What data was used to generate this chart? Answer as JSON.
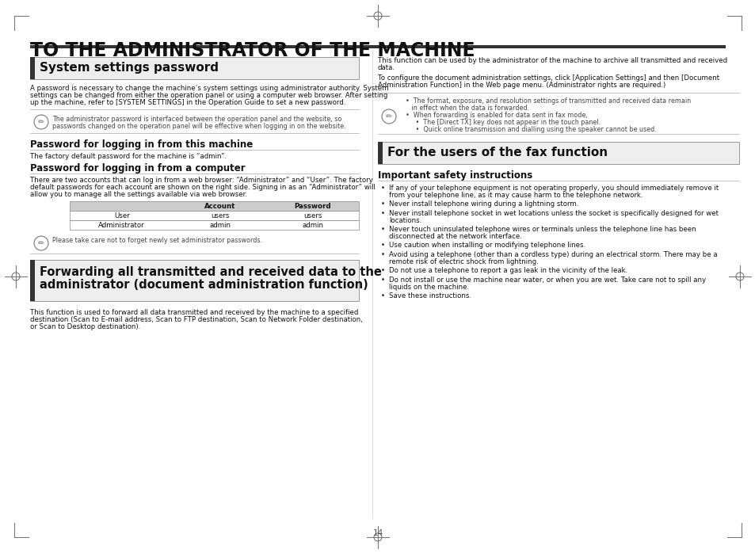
{
  "page_bg": "#ffffff",
  "page_title": "TO THE ADMINISTRATOR OF THE MACHINE",
  "section1_title": "System settings password",
  "section1_body1": "A password is necessary to change the machine’s system settings using administrator authority. System",
  "section1_body2": "settings can be changed from either the operation panel or using a computer web browser. After setting",
  "section1_body3": "up the machine, refer to [SYSTEM SETTINGS] in the Operation Guide to set a new password.",
  "note1_line1": "The administrator password is interfaced between the operation panel and the website, so",
  "note1_line2": "passwords changed on the operation panel will be effective when logging in on the website.",
  "subsec1_title": "Password for logging in from this machine",
  "subsec1_body": "The factory default password for the machine is “admin”.",
  "subsec2_title": "Password for logging in from a computer",
  "subsec2_body1": "There are two accounts that can log in from a web browser: “Administrator” and “User”. The factory",
  "subsec2_body2": "default passwords for each account are shown on the right side. Signing in as an “Administrator” will",
  "subsec2_body3": "allow you to manage all the settings available via web browser.",
  "table_headers": [
    "",
    "Account",
    "Password"
  ],
  "table_rows": [
    [
      "User",
      "users",
      "users"
    ],
    [
      "Administrator",
      "admin",
      "admin"
    ]
  ],
  "note2_text": "Please take care not to forget newly set administrator passwords.",
  "forward_box_line1": "Forwarding all transmitted and received data to the",
  "forward_box_line2": "administrator (document administration function)",
  "forward_body1": "This function is used to forward all data transmitted and received by the machine to a specified",
  "forward_body2": "destination (Scan to E-mail address, Scan to FTP destination, Scan to Network Folder destination,",
  "forward_body3": "or Scan to Desktop destination).",
  "right_body1a": "This function can be used by the administrator of the machine to archive all transmitted and received",
  "right_body1b": "data.",
  "right_body2a": "To configure the document administration settings, click [Application Settings] and then [Document",
  "right_body2b": "Administration Function] in the Web page menu. (Administrator rights are required.)",
  "rnote1": "  •  The format, exposure, and resolution settings of transmitted and received data remain",
  "rnote2": "     in effect when the data is forwarded.",
  "rnote3": "  •  When forwarding is enabled for data sent in fax mode,",
  "rnote4": "       •  The [Direct TX] key does not appear in the touch panel.",
  "rnote5": "       •  Quick online transmission and dialling using the speaker cannot be used.",
  "section2_title": "For the users of the fax function",
  "important_title": "Important safety instructions",
  "safety_items": [
    [
      "If any of your telephone equipment is not operating properly, you should immediately remove it",
      "from your telephone line, as it may cause harm to the telephone network."
    ],
    [
      "Never install telephone wiring during a lightning storm."
    ],
    [
      "Never install telephone socket in wet locations unless the socket is specifically designed for wet",
      "locations."
    ],
    [
      "Never touch uninsulated telephone wires or terminals unless the telephone line has been",
      "disconnected at the network interface."
    ],
    [
      "Use caution when installing or modifying telephone lines."
    ],
    [
      "Avoid using a telephone (other than a cordless type) during an electrical storm. There may be a",
      "remote risk of electric shock from lightning."
    ],
    [
      "Do not use a telephone to report a gas leak in the vicinity of the leak."
    ],
    [
      "Do not install or use the machine near water, or when you are wet. Take care not to spill any",
      "liquids on the machine."
    ],
    [
      "Save these instructions."
    ]
  ],
  "page_number": "14",
  "gray_dark": "#333333",
  "gray_mid": "#777777",
  "gray_light": "#aaaaaa",
  "gray_lighter": "#cccccc",
  "gray_box_bg": "#eeeeee",
  "table_hdr_bg": "#cccccc",
  "text_color": "#111111",
  "note_text_color": "#444444"
}
